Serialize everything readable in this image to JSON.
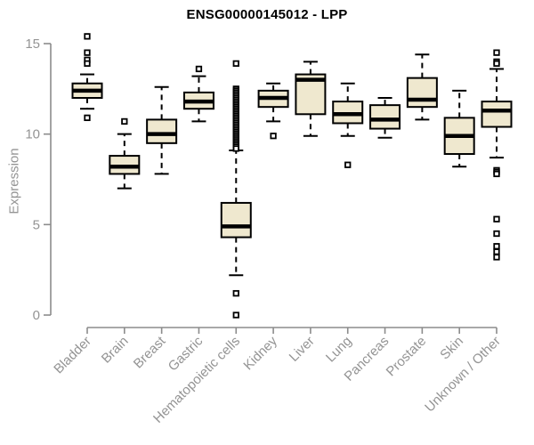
{
  "title": "ENSG00000145012 - LPP",
  "chart_data": {
    "type": "boxplot",
    "title": "ENSG00000145012 - LPP",
    "xlabel": "",
    "ylabel": "Expression",
    "ylim": [
      0,
      15
    ],
    "yticks": [
      0,
      5,
      10,
      15
    ],
    "grid": false,
    "legend": "none",
    "categories": [
      "Bladder",
      "Brain",
      "Breast",
      "Gastric",
      "Hematopoietic cells",
      "Kidney",
      "Liver",
      "Lung",
      "Pancreas",
      "Prostate",
      "Skin",
      "Unknown / Other"
    ],
    "series": [
      {
        "name": "Bladder",
        "whisker_low": 11.4,
        "q1": 12.0,
        "median": 12.4,
        "q3": 12.8,
        "whisker_high": 13.3,
        "outliers": [
          15.4,
          14.5,
          14.1,
          13.9,
          10.9
        ]
      },
      {
        "name": "Brain",
        "whisker_low": 7.0,
        "q1": 7.8,
        "median": 8.2,
        "q3": 8.8,
        "whisker_high": 10.0,
        "outliers": [
          10.7
        ]
      },
      {
        "name": "Breast",
        "whisker_low": 7.8,
        "q1": 9.5,
        "median": 10.0,
        "q3": 10.8,
        "whisker_high": 12.6,
        "outliers": []
      },
      {
        "name": "Gastric",
        "whisker_low": 10.7,
        "q1": 11.4,
        "median": 11.8,
        "q3": 12.3,
        "whisker_high": 13.2,
        "outliers": [
          13.6
        ]
      },
      {
        "name": "Hematopoietic cells",
        "whisker_low": 2.2,
        "q1": 4.3,
        "median": 4.9,
        "q3": 6.2,
        "whisker_high": 9.1,
        "outliers": [
          13.9,
          12.5,
          12.4,
          12.3,
          12.2,
          12.1,
          12.0,
          11.9,
          11.8,
          11.7,
          11.6,
          11.5,
          11.4,
          11.3,
          11.2,
          11.1,
          11.0,
          10.9,
          10.8,
          10.7,
          10.6,
          10.5,
          10.4,
          10.3,
          10.2,
          10.1,
          10.0,
          9.9,
          9.8,
          9.7,
          9.6,
          9.5,
          9.4,
          9.3,
          9.2,
          1.2,
          0.0
        ]
      },
      {
        "name": "Kidney",
        "whisker_low": 10.7,
        "q1": 11.5,
        "median": 12.0,
        "q3": 12.4,
        "whisker_high": 12.8,
        "outliers": [
          9.9
        ]
      },
      {
        "name": "Liver",
        "whisker_low": 9.9,
        "q1": 11.1,
        "median": 13.0,
        "q3": 13.3,
        "whisker_high": 14.0,
        "outliers": []
      },
      {
        "name": "Lung",
        "whisker_low": 9.9,
        "q1": 10.6,
        "median": 11.1,
        "q3": 11.8,
        "whisker_high": 12.8,
        "outliers": [
          8.3
        ]
      },
      {
        "name": "Pancreas",
        "whisker_low": 9.8,
        "q1": 10.3,
        "median": 10.8,
        "q3": 11.6,
        "whisker_high": 12.0,
        "outliers": []
      },
      {
        "name": "Prostate",
        "whisker_low": 10.8,
        "q1": 11.5,
        "median": 11.9,
        "q3": 13.1,
        "whisker_high": 14.4,
        "outliers": []
      },
      {
        "name": "Skin",
        "whisker_low": 8.2,
        "q1": 8.9,
        "median": 9.9,
        "q3": 10.9,
        "whisker_high": 12.4,
        "outliers": []
      },
      {
        "name": "Unknown / Other",
        "whisker_low": 8.7,
        "q1": 10.4,
        "median": 11.3,
        "q3": 11.8,
        "whisker_high": 13.6,
        "outliers": [
          14.5,
          14.0,
          13.9,
          8.0,
          7.9,
          7.8,
          5.3,
          4.5,
          3.8,
          3.5,
          3.2
        ]
      }
    ],
    "colors": {
      "box_fill": "#efe8cf",
      "box_border": "#000000",
      "median": "#000000",
      "whisker": "#000000",
      "outlier": "#000000",
      "axis": "#8c8c8c",
      "label_text": "#949494",
      "title_text": "#000000"
    }
  }
}
